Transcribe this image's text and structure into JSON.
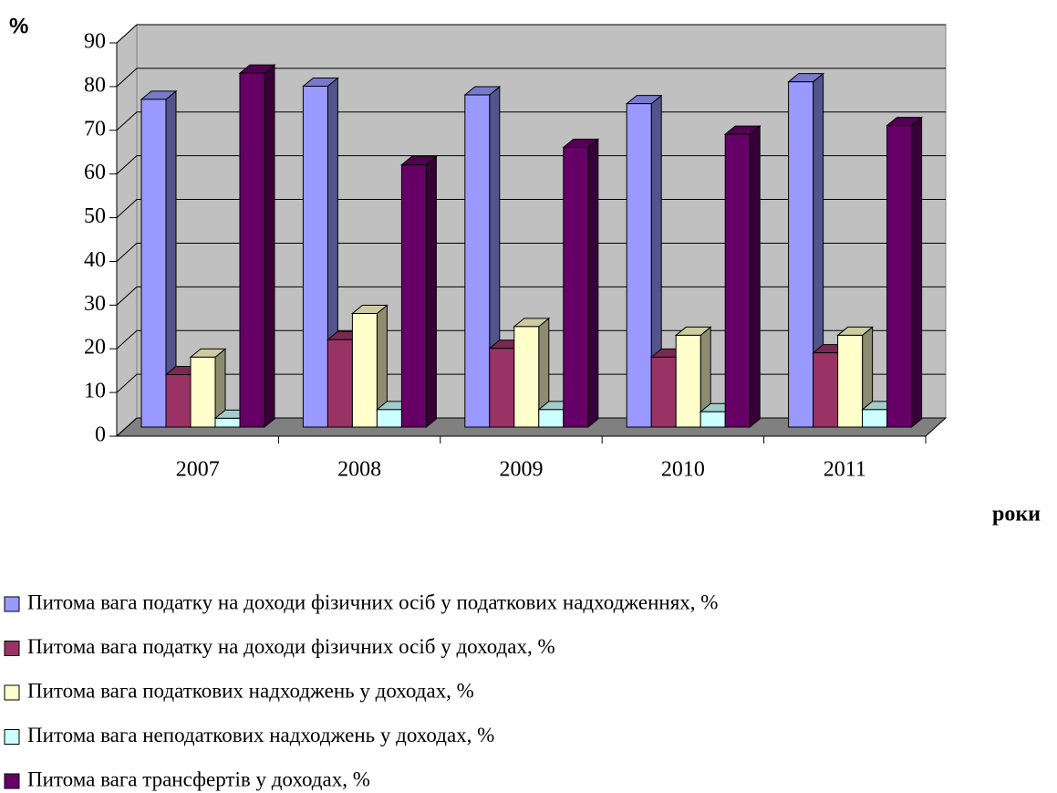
{
  "chart_data": {
    "type": "bar3d",
    "y_label": "%",
    "x_label": "роки",
    "categories": [
      "2007",
      "2008",
      "2009",
      "2010",
      "2011"
    ],
    "series": [
      {
        "name": "Питома вага податку на доходи фізичних осіб у податкових надходженнях, %",
        "color": "#9999ff",
        "values": [
          75,
          78,
          76,
          74,
          79
        ]
      },
      {
        "name": "Питома вага податку на доходи фізичних осіб у доходах, %",
        "color": "#993366",
        "values": [
          12,
          20,
          18,
          16,
          17
        ]
      },
      {
        "name": "Питома вага податкових надходжень у доходах, %",
        "color": "#ffffcc",
        "values": [
          16,
          26,
          23,
          21,
          21
        ]
      },
      {
        "name": "Питома вага неподаткових надходжень у доходах, %",
        "color": "#ccffff",
        "values": [
          2,
          4,
          4,
          3.5,
          4
        ]
      },
      {
        "name": "Питома вага трансфертів у доходах, %",
        "color": "#660066",
        "values": [
          81,
          60,
          64,
          67,
          69
        ]
      }
    ],
    "ylim": [
      0,
      90
    ],
    "yticks": [
      0,
      10,
      20,
      30,
      40,
      50,
      60,
      70,
      80,
      90
    ],
    "grid": true
  }
}
